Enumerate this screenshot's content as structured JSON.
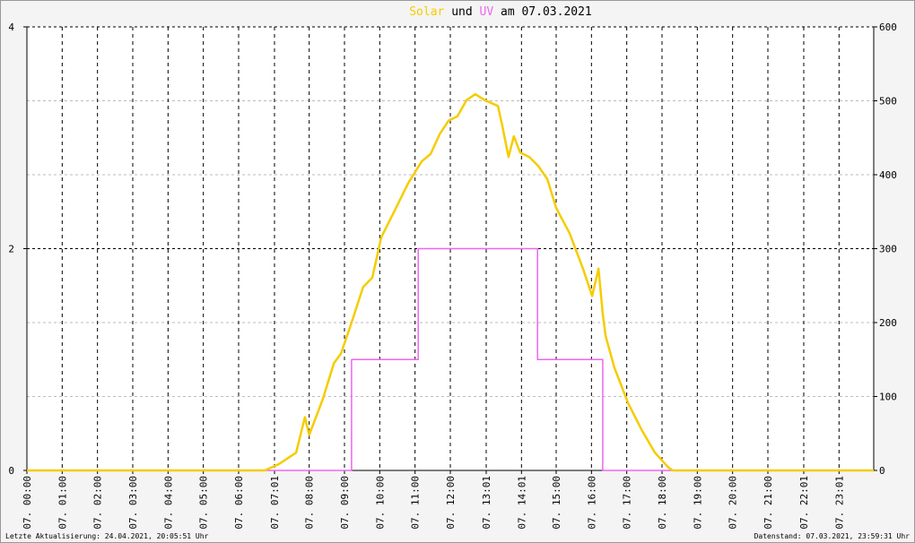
{
  "chart_data": {
    "type": "line",
    "title": {
      "middle": "und",
      "end": "am 07.03.2021"
    },
    "footer_left": "Letzte Aktualisierung: 24.04.2021, 20:05:51 Uhr",
    "footer_right": "Datenstand: 07.03.2021, 23:59:31 Uhr",
    "xlim": [
      0,
      24
    ],
    "xticks": [
      {
        "value": 0,
        "label": "07. 00:00"
      },
      {
        "value": 1,
        "label": "07. 01:00"
      },
      {
        "value": 2,
        "label": "07. 02:00"
      },
      {
        "value": 3,
        "label": "07. 03:00"
      },
      {
        "value": 4,
        "label": "07. 04:00"
      },
      {
        "value": 5,
        "label": "07. 05:00"
      },
      {
        "value": 6,
        "label": "07. 06:00"
      },
      {
        "value": 7.0167,
        "label": "07. 07:01"
      },
      {
        "value": 8,
        "label": "07. 08:00"
      },
      {
        "value": 9,
        "label": "07. 09:00"
      },
      {
        "value": 10,
        "label": "07. 10:00"
      },
      {
        "value": 11,
        "label": "07. 11:00"
      },
      {
        "value": 12,
        "label": "07. 12:00"
      },
      {
        "value": 13.0167,
        "label": "07. 13:01"
      },
      {
        "value": 14.0167,
        "label": "07. 14:01"
      },
      {
        "value": 15,
        "label": "07. 15:00"
      },
      {
        "value": 16,
        "label": "07. 16:00"
      },
      {
        "value": 17,
        "label": "07. 17:00"
      },
      {
        "value": 18,
        "label": "07. 18:00"
      },
      {
        "value": 19,
        "label": "07. 19:00"
      },
      {
        "value": 20,
        "label": "07. 20:00"
      },
      {
        "value": 21,
        "label": "07. 21:00"
      },
      {
        "value": 22.0167,
        "label": "07. 22:01"
      },
      {
        "value": 23.0167,
        "label": "07. 23:01"
      }
    ],
    "ylim": [
      0,
      4
    ],
    "yticks": [
      0,
      2,
      4
    ],
    "y2lim": [
      0,
      600
    ],
    "y2ticks": [
      0,
      100,
      200,
      300,
      400,
      500,
      600
    ],
    "series": [
      {
        "name": "Solar",
        "color": "#f5cc00",
        "axis": "y2",
        "x": [
          0,
          6.74,
          7.12,
          7.63,
          7.88,
          8.0,
          8.39,
          8.7,
          8.9,
          9.2,
          9.53,
          9.79,
          10.04,
          10.43,
          10.8,
          11.19,
          11.44,
          11.7,
          11.95,
          12.2,
          12.46,
          12.71,
          12.97,
          13.35,
          13.47,
          13.65,
          13.8,
          13.98,
          14.24,
          14.49,
          14.75,
          15.0,
          15.38,
          15.76,
          16.02,
          16.2,
          16.32,
          16.4,
          16.65,
          17.04,
          17.42,
          17.8,
          18.18,
          18.3,
          24
        ],
        "values": [
          0,
          0,
          8,
          24,
          72,
          48,
          97,
          145,
          158,
          200,
          248,
          261,
          315,
          352,
          388,
          418,
          428,
          455,
          473,
          479,
          501,
          509,
          501,
          493,
          467,
          424,
          452,
          430,
          424,
          412,
          394,
          355,
          321,
          273,
          236,
          273,
          212,
          182,
          139,
          91,
          55,
          24,
          4,
          0,
          0
        ]
      },
      {
        "name": "UV",
        "color": "#ee66ee",
        "axis": "y",
        "x": [
          0,
          9.2,
          9.2,
          11.09,
          11.09,
          14.47,
          14.47,
          16.32,
          16.32,
          24
        ],
        "values": [
          0,
          0,
          1,
          1,
          2,
          2,
          1,
          1,
          0,
          0
        ]
      }
    ]
  }
}
